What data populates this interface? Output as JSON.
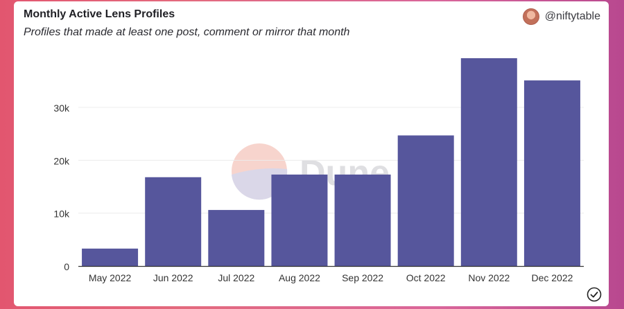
{
  "header": {
    "title": "Monthly Active Lens Profiles",
    "subtitle": "Profiles that made at least one post, comment or mirror that month",
    "author": "@niftytable",
    "avatar_icon": "avatar-icon"
  },
  "watermark": {
    "text": "Dune"
  },
  "colors": {
    "bar": "#56569c",
    "axis": "#333333",
    "grid": "#ececec"
  },
  "chart_data": {
    "type": "bar",
    "title": "Monthly Active Lens Profiles",
    "subtitle": "Profiles that made at least one post, comment or mirror that month",
    "categories": [
      "May 2022",
      "Jun 2022",
      "Jul 2022",
      "Aug 2022",
      "Sep 2022",
      "Oct 2022",
      "Nov 2022",
      "Dec 2022"
    ],
    "values": [
      3300,
      16800,
      10600,
      17300,
      17300,
      24700,
      39300,
      35100
    ],
    "yticks": [
      0,
      10000,
      20000,
      30000
    ],
    "ytick_labels": [
      "0",
      "10k",
      "20k",
      "30k"
    ],
    "ylim": [
      0,
      40000
    ],
    "grid": true,
    "legend": "none"
  },
  "footer": {
    "status_icon": "check-circle-icon"
  }
}
